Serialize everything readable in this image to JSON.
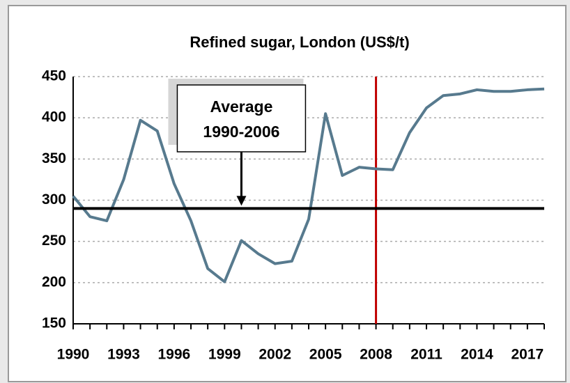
{
  "chart_data": {
    "type": "line",
    "title": "Refined sugar, London (US$/t)",
    "x": [
      1990,
      1991,
      1992,
      1993,
      1994,
      1995,
      1996,
      1997,
      1998,
      1999,
      2000,
      2001,
      2002,
      2003,
      2004,
      2005,
      2006,
      2007,
      2008,
      2009,
      2010,
      2011,
      2012,
      2013,
      2014,
      2015,
      2016,
      2017,
      2018
    ],
    "series": [
      {
        "color": "#577a8e",
        "values": [
          305,
          280,
          275,
          325,
          397,
          384,
          320,
          275,
          217,
          201,
          251,
          235,
          223,
          226,
          277,
          405,
          330,
          340,
          338,
          337,
          382,
          412,
          427,
          429,
          434,
          432,
          432,
          434,
          435
        ]
      }
    ],
    "xlim": [
      1990,
      2018
    ],
    "xticks": [
      1990,
      1993,
      1996,
      1999,
      2002,
      2005,
      2008,
      2011,
      2014,
      2017
    ],
    "ylim": [
      150,
      450
    ],
    "yticks": [
      150,
      200,
      250,
      300,
      350,
      400,
      450
    ],
    "grid": true,
    "reference_line": {
      "value": 290,
      "color": "#000000"
    },
    "vertical_line": {
      "x": 2008,
      "color": "#c00000"
    },
    "annotation": {
      "text": [
        "Average",
        "1990-2006"
      ],
      "x": 2000
    }
  }
}
